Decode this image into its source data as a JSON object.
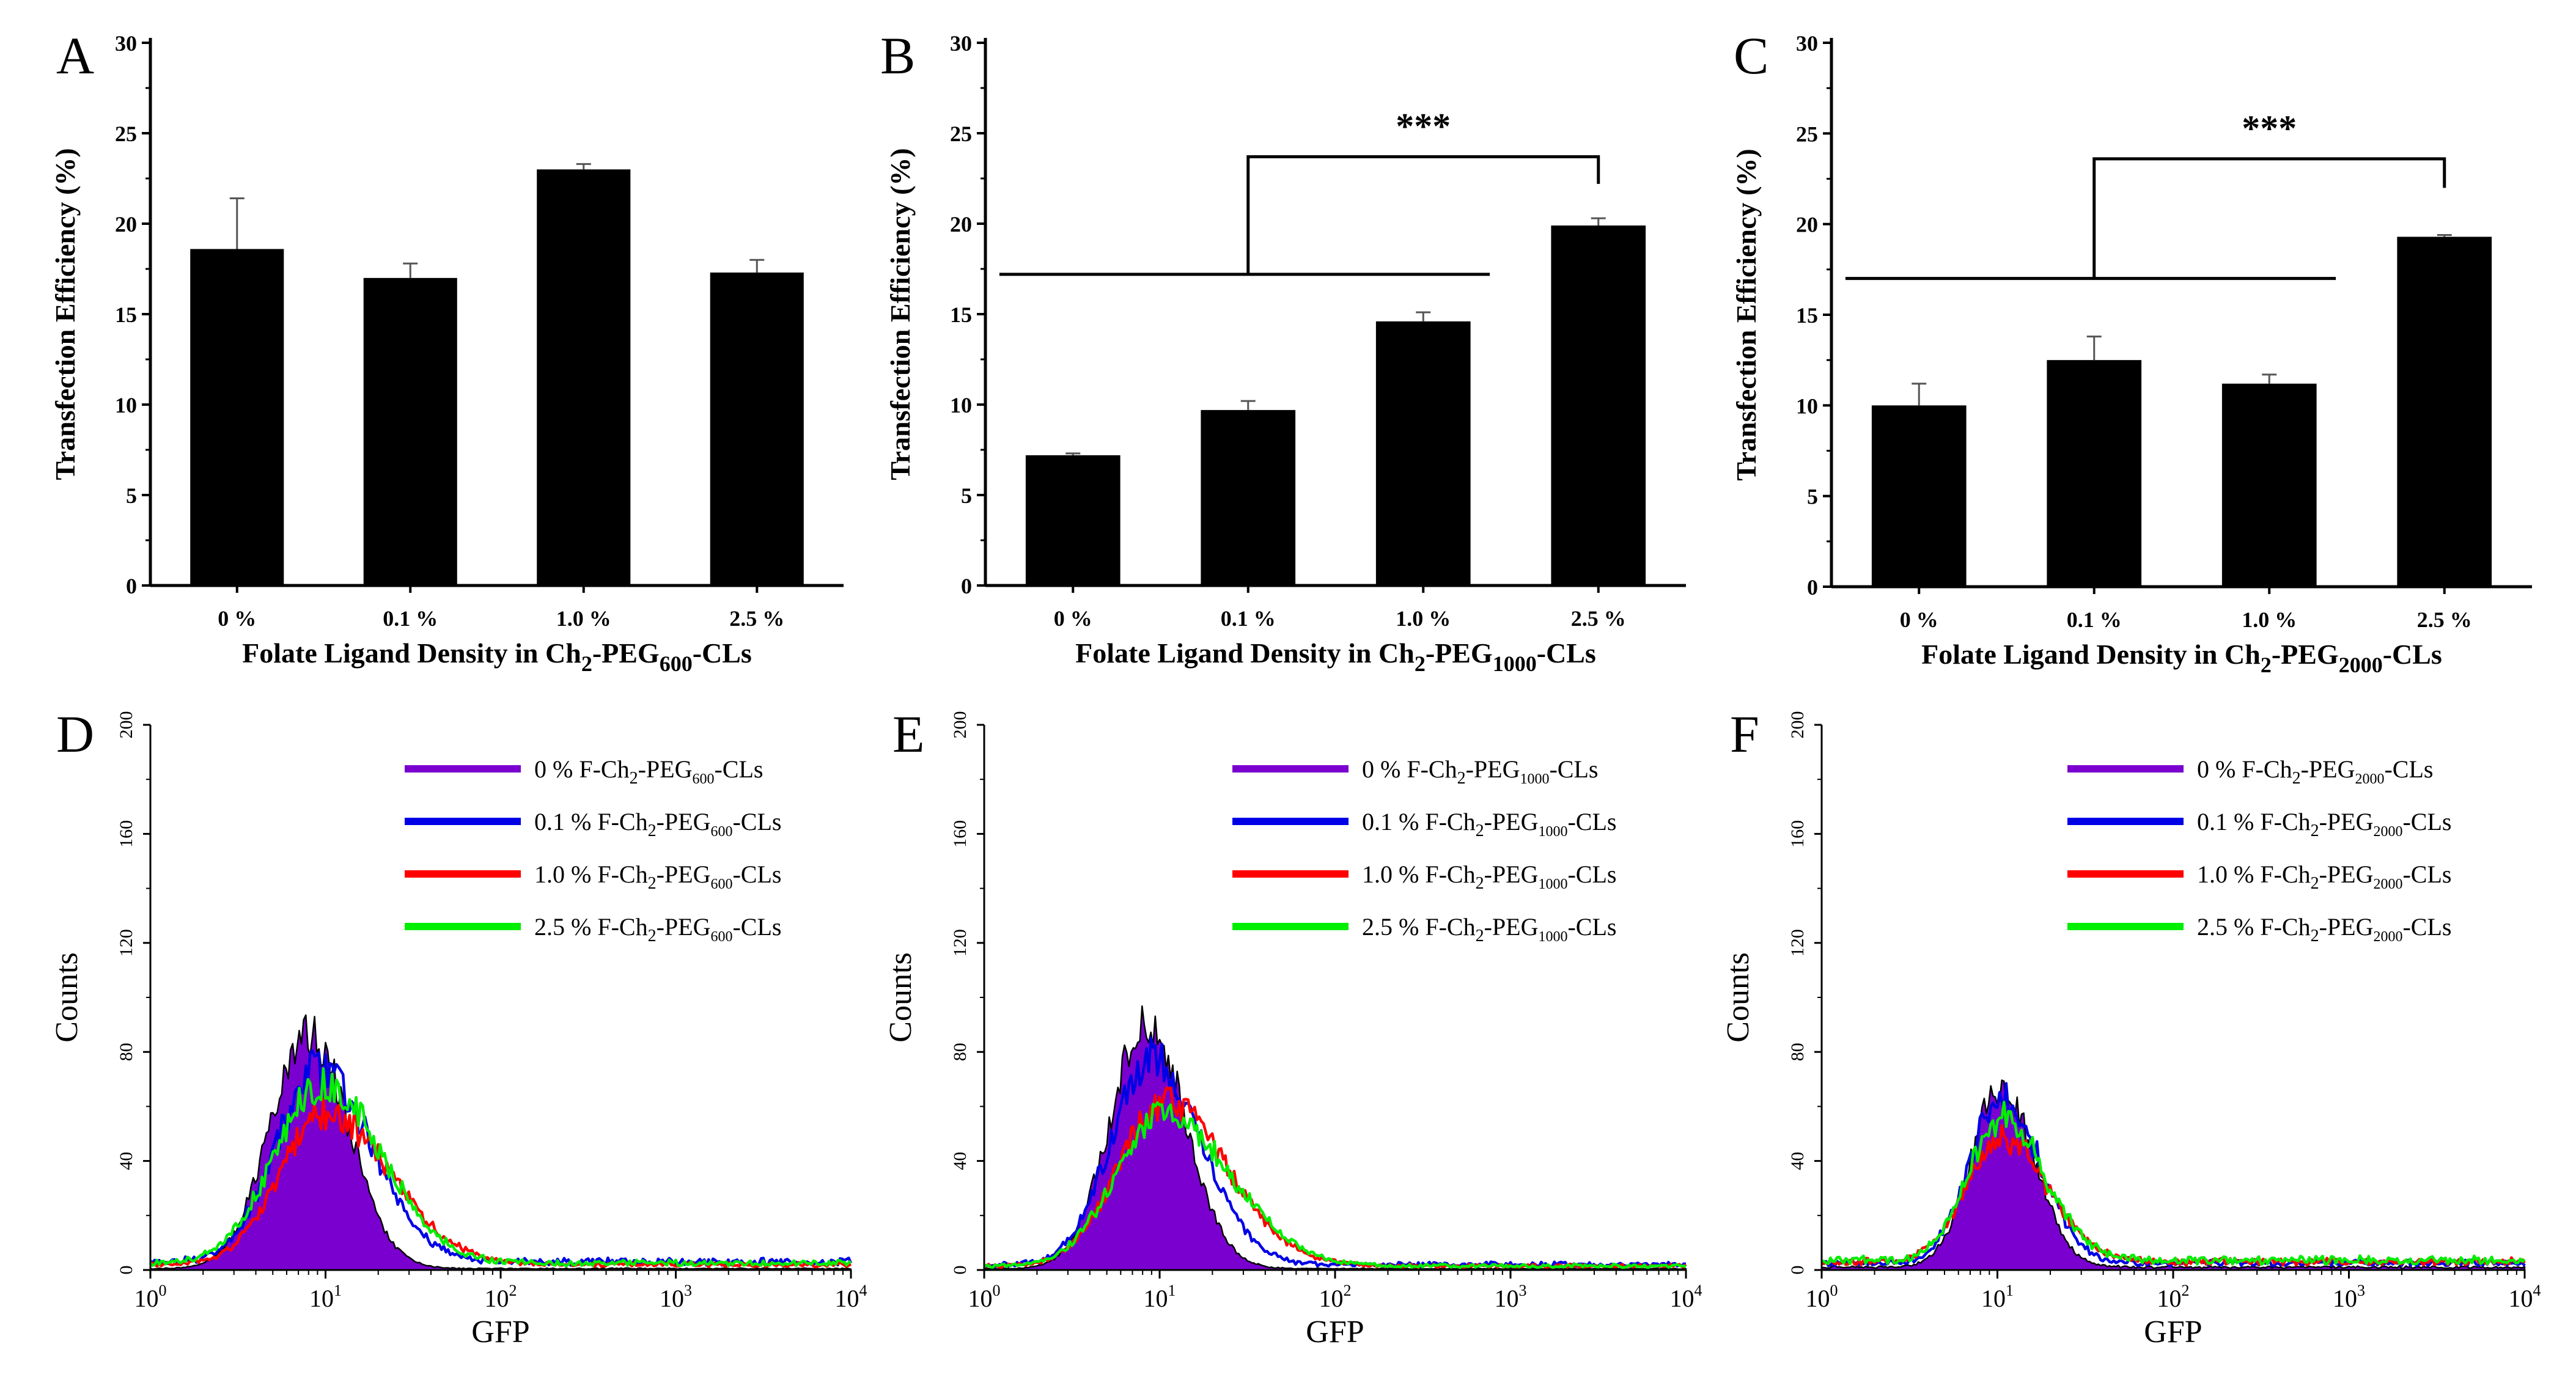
{
  "figure_name": "folate-ligand-transfection-figure",
  "colors": {
    "bar": "#000000",
    "c0": "#7a00d0",
    "c01": "#0000e6",
    "c10": "#ff0000",
    "c25": "#00ee00"
  },
  "chart_data": [
    {
      "panel": "A",
      "type": "bar",
      "categories": [
        "0 %",
        "0.1 %",
        "1.0 %",
        "2.5 %"
      ],
      "values": [
        18.6,
        17.0,
        23.0,
        17.3
      ],
      "errors": [
        2.8,
        0.8,
        0.3,
        0.7
      ],
      "ylim": [
        0,
        30
      ],
      "yticks": [
        "0",
        "5",
        "10",
        "15",
        "20",
        "25",
        "30"
      ],
      "ylabel": "Transfection Efficiency (%)",
      "xlabel": {
        "pre": "Folate Ligand Density in Ch",
        "sub1": "2",
        "mid": "-PEG",
        "sub2": "600",
        "post": "-CLs"
      },
      "significance": null
    },
    {
      "panel": "B",
      "type": "bar",
      "categories": [
        "0 %",
        "0.1 %",
        "1.0 %",
        "2.5 %"
      ],
      "values": [
        7.2,
        9.7,
        14.6,
        19.9
      ],
      "errors": [
        0.1,
        0.5,
        0.5,
        0.4
      ],
      "ylim": [
        0,
        30
      ],
      "yticks": [
        "0",
        "5",
        "10",
        "15",
        "20",
        "25",
        "30"
      ],
      "ylabel": "Transfection Efficiency (%)",
      "xlabel": {
        "pre": "Folate Ligand Density in Ch",
        "sub1": "2",
        "mid": "-PEG",
        "sub2": "1000",
        "post": "-CLs"
      },
      "significance": {
        "label": "***",
        "hline_y": 17.2,
        "top_y": 23.7,
        "right_drop_y": 22.2
      }
    },
    {
      "panel": "C",
      "type": "bar",
      "categories": [
        "0 %",
        "0.1 %",
        "1.0 %",
        "2.5 %"
      ],
      "values": [
        10.0,
        12.5,
        11.2,
        19.3
      ],
      "errors": [
        1.2,
        1.3,
        0.5,
        0.1
      ],
      "ylim": [
        0,
        30
      ],
      "yticks": [
        "0",
        "5",
        "10",
        "15",
        "20",
        "25",
        "30"
      ],
      "ylabel": "Transfection Efficiency (%)",
      "xlabel": {
        "pre": "Folate Ligand Density in Ch",
        "sub1": "2",
        "mid": "-PEG",
        "sub2": "2000",
        "post": "-CLs"
      },
      "significance": {
        "label": "***",
        "hline_y": 17.0,
        "top_y": 23.6,
        "right_drop_y": 22.0
      }
    },
    {
      "panel": "D",
      "type": "area",
      "xscale": "log",
      "xlim": [
        1,
        10000
      ],
      "ylim": [
        0,
        200
      ],
      "yticks": [
        "0",
        "40",
        "80",
        "120",
        "160",
        "200"
      ],
      "ylabel": "Counts",
      "xlabel": "GFP",
      "xtick_base": "10",
      "xtick_exps": [
        "0",
        "1",
        "2",
        "3",
        "4"
      ],
      "legend_sub": "600",
      "series": [
        {
          "name": "0 %",
          "color_key": "c0",
          "fill": true,
          "peak_x": 8,
          "peak_y": 86,
          "sl": 0.22,
          "sr": 0.23,
          "tail": 0.5
        },
        {
          "name": "0.1 %",
          "color_key": "c01",
          "fill": false,
          "peak_x": 9,
          "peak_y": 70,
          "sl": 0.24,
          "sr": 0.31,
          "tail": 3
        },
        {
          "name": "1.0 %",
          "color_key": "c10",
          "fill": false,
          "peak_x": 10,
          "peak_y": 55,
          "sl": 0.26,
          "sr": 0.37,
          "tail": 2
        },
        {
          "name": "2.5 %",
          "color_key": "c25",
          "fill": false,
          "peak_x": 9.5,
          "peak_y": 66,
          "sl": 0.27,
          "sr": 0.34,
          "tail": 2.5
        }
      ]
    },
    {
      "panel": "E",
      "type": "area",
      "xscale": "log",
      "xlim": [
        1,
        10000
      ],
      "ylim": [
        0,
        200
      ],
      "yticks": [
        "0",
        "40",
        "80",
        "120",
        "160",
        "200"
      ],
      "ylabel": "Counts",
      "xlabel": "GFP",
      "xtick_base": "10",
      "xtick_exps": [
        "0",
        "1",
        "2",
        "3",
        "4"
      ],
      "legend_sub": "1000",
      "series": [
        {
          "name": "0 %",
          "color_key": "c0",
          "fill": true,
          "peak_x": 8.5,
          "peak_y": 90,
          "sl": 0.21,
          "sr": 0.22,
          "tail": 0.5
        },
        {
          "name": "0.1 %",
          "color_key": "c01",
          "fill": false,
          "peak_x": 9,
          "peak_y": 76,
          "sl": 0.23,
          "sr": 0.28,
          "tail": 2
        },
        {
          "name": "1.0 %",
          "color_key": "c10",
          "fill": false,
          "peak_x": 10.5,
          "peak_y": 60,
          "sl": 0.26,
          "sr": 0.36,
          "tail": 1.5
        },
        {
          "name": "2.5 %",
          "color_key": "c25",
          "fill": false,
          "peak_x": 10.5,
          "peak_y": 56,
          "sl": 0.27,
          "sr": 0.38,
          "tail": 1.5
        }
      ]
    },
    {
      "panel": "F",
      "type": "area",
      "xscale": "log",
      "xlim": [
        1,
        10000
      ],
      "ylim": [
        0,
        200
      ],
      "yticks": [
        "0",
        "40",
        "80",
        "120",
        "160",
        "200"
      ],
      "ylabel": "Counts",
      "xlabel": "GFP",
      "xtick_base": "10",
      "xtick_exps": [
        "0",
        "1",
        "2",
        "3",
        "4"
      ],
      "legend_sub": "2000",
      "series": [
        {
          "name": "0 %",
          "color_key": "c0",
          "fill": true,
          "peak_x": 10.5,
          "peak_y": 66,
          "sl": 0.17,
          "sr": 0.19,
          "tail": 1
        },
        {
          "name": "0.1 %",
          "color_key": "c01",
          "fill": false,
          "peak_x": 10.5,
          "peak_y": 62,
          "sl": 0.18,
          "sr": 0.22,
          "tail": 2.5
        },
        {
          "name": "1.0 %",
          "color_key": "c10",
          "fill": false,
          "peak_x": 10.5,
          "peak_y": 46,
          "sl": 0.2,
          "sr": 0.26,
          "tail": 3
        },
        {
          "name": "2.5 %",
          "color_key": "c25",
          "fill": false,
          "peak_x": 10.5,
          "peak_y": 52,
          "sl": 0.19,
          "sr": 0.25,
          "tail": 3.5
        }
      ]
    }
  ],
  "legend": {
    "entries": [
      {
        "pct": "0 %",
        "color_key": "c0"
      },
      {
        "pct": "0.1 %",
        "color_key": "c01"
      },
      {
        "pct": "1.0 %",
        "color_key": "c10"
      },
      {
        "pct": "2.5 %",
        "color_key": "c25"
      }
    ],
    "pre": " F-Ch",
    "sub1": "2",
    "mid": "-PEG",
    "post": "-CLs"
  }
}
